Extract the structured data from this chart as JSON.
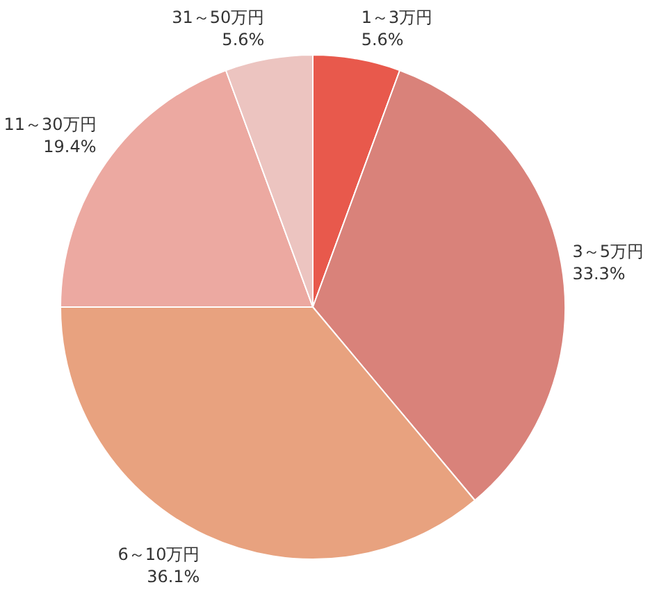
{
  "chart_data": {
    "type": "pie",
    "categories": [
      "1～3万円",
      "3～5万円",
      "6～10万円",
      "11～30万円",
      "31～50万円"
    ],
    "values": [
      5.6,
      33.3,
      36.1,
      19.4,
      5.6
    ],
    "colors": [
      "#e8594c",
      "#d9827a",
      "#e8a27f",
      "#eca9a1",
      "#ecc4c0"
    ],
    "value_labels": [
      "5.6%",
      "33.3%",
      "36.1%",
      "19.4%",
      "5.6%"
    ],
    "legend": false
  }
}
